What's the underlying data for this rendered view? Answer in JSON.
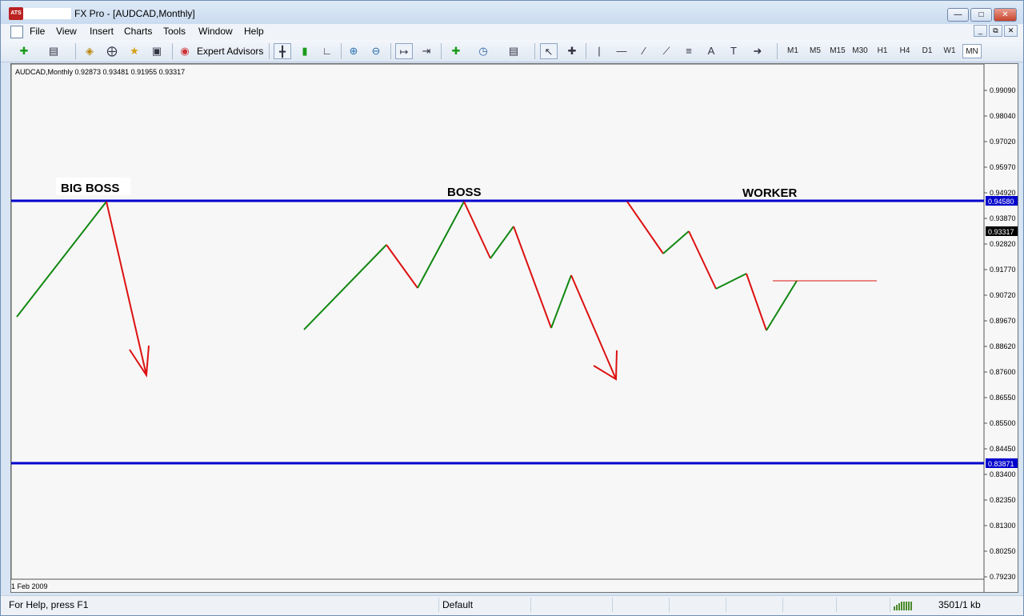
{
  "window": {
    "title": "FX Pro - [AUDCAD,Monthly]",
    "app_icon": "ATS"
  },
  "menu": [
    "File",
    "View",
    "Insert",
    "Charts",
    "Tools",
    "Window",
    "Help"
  ],
  "toolbar": {
    "expert_advisors_label": "Expert Advisors",
    "timeframes": [
      "M1",
      "M5",
      "M15",
      "M30",
      "H1",
      "H4",
      "D1",
      "W1",
      "MN"
    ],
    "active_timeframe": "MN"
  },
  "chart": {
    "header": "AUDCAD,Monthly  0.92873 0.93481 0.91955 0.93317",
    "date_label": "1 Feb 2009",
    "annotations": {
      "big_boss": "BIG BOSS",
      "boss": "BOSS",
      "worker": "WORKER"
    },
    "price_ticks": [
      "0.99090",
      "0.98040",
      "0.97020",
      "0.95970",
      "0.94920",
      "0.93870",
      "0.92820",
      "0.91770",
      "0.90720",
      "0.89670",
      "0.88620",
      "0.87600",
      "0.86550",
      "0.85500",
      "0.84450",
      "0.83400",
      "0.82350",
      "0.81300",
      "0.80250",
      "0.79230"
    ],
    "level_upper": "0.94580",
    "level_lower": "0.83871",
    "current_price": "0.93317",
    "colors": {
      "level_line": "#0000cc",
      "up_leg": "#118811",
      "down_leg": "#dd1111"
    }
  },
  "status": {
    "help": "For Help, press F1",
    "profile": "Default",
    "traffic": "3501/1 kb"
  }
}
